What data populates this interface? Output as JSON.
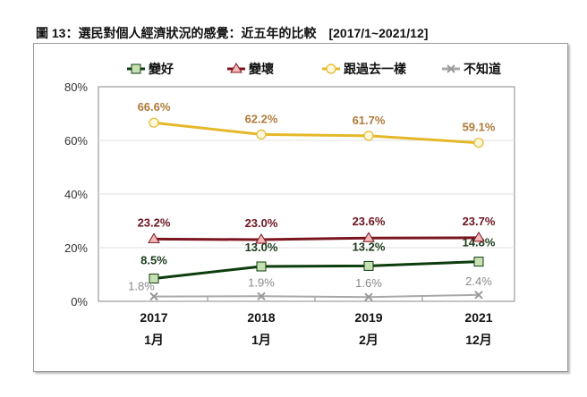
{
  "chart_data": {
    "type": "line",
    "title": "圖 13：選民對個人經濟狀況的感覺：近五年的比較　[2017/1~2021/12]",
    "categories": [
      [
        "2017",
        "1月"
      ],
      [
        "2018",
        "1月"
      ],
      [
        "2019",
        "2月"
      ],
      [
        "2021",
        "12月"
      ]
    ],
    "ylim": [
      0,
      80
    ],
    "yticks": [
      "0%",
      "20%",
      "40%",
      "60%",
      "80%"
    ],
    "grid": true,
    "legend_position": "top",
    "series": [
      {
        "name": "變好",
        "values": [
          8.5,
          13.0,
          13.2,
          14.8
        ],
        "labels": [
          "8.5%",
          "13.0%",
          "13.2%",
          "14.8%"
        ],
        "color": "#0d3d0d",
        "marker": "square",
        "marker_fill": "#c6e0b4",
        "label_color": "#1a3a1a"
      },
      {
        "name": "變壞",
        "values": [
          23.2,
          23.0,
          23.6,
          23.7
        ],
        "labels": [
          "23.2%",
          "23.0%",
          "23.6%",
          "23.7%"
        ],
        "color": "#7b1520",
        "marker": "triangle",
        "marker_fill": "#f4b8b8",
        "label_color": "#6b1520"
      },
      {
        "name": "跟過去一樣",
        "values": [
          66.6,
          62.2,
          61.7,
          59.1
        ],
        "labels": [
          "66.6%",
          "62.2%",
          "61.7%",
          "59.1%"
        ],
        "color": "#e5b82a",
        "marker": "circle",
        "marker_fill": "#fff8dc",
        "label_color": "#b07a3a"
      },
      {
        "name": "不知道",
        "values": [
          1.8,
          1.9,
          1.6,
          2.4
        ],
        "labels": [
          "1.8%",
          "1.9%",
          "1.6%",
          "2.4%"
        ],
        "color": "#a8a8a8",
        "marker": "x",
        "marker_fill": "#cccccc",
        "label_color": "#8a8a8a"
      }
    ]
  }
}
